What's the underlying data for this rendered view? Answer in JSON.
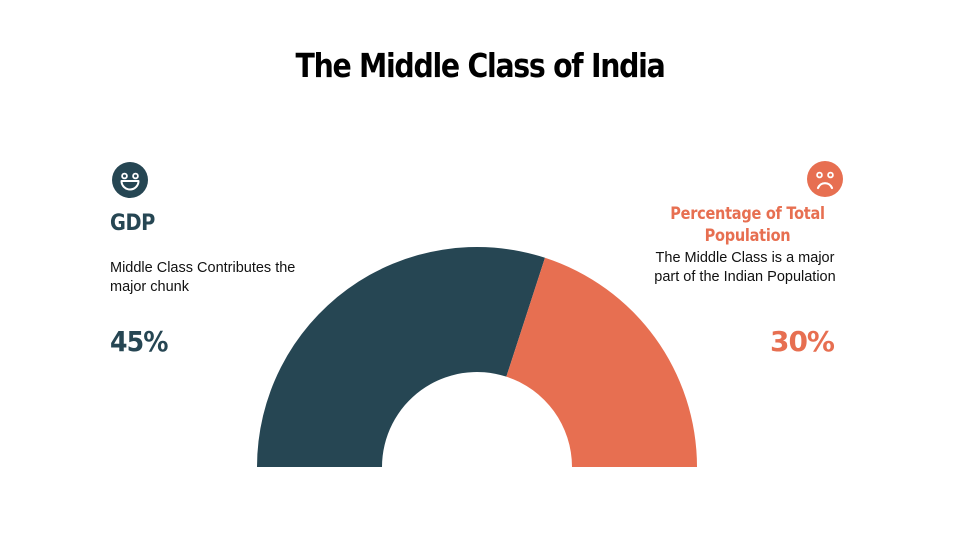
{
  "title": "The Middle Class of India",
  "left": {
    "icon": "smile-icon",
    "heading": "GDP",
    "description": "Middle Class Contributes the major chunk",
    "value": "45%",
    "color": "#264653"
  },
  "right": {
    "icon": "frown-icon",
    "heading": "Percentage of Total Population",
    "description": "The Middle Class is a major part of the Indian Population",
    "value": "30%",
    "color": "#e76f51"
  },
  "chart_data": {
    "type": "pie",
    "subtype": "semi-donut",
    "title": "The Middle Class of India",
    "categories": [
      "GDP",
      "Percentage of Total Population"
    ],
    "values": [
      45,
      30
    ],
    "colors": [
      "#264653",
      "#e76f51"
    ],
    "labels": [
      "45%",
      "30%"
    ],
    "legend": "none"
  }
}
